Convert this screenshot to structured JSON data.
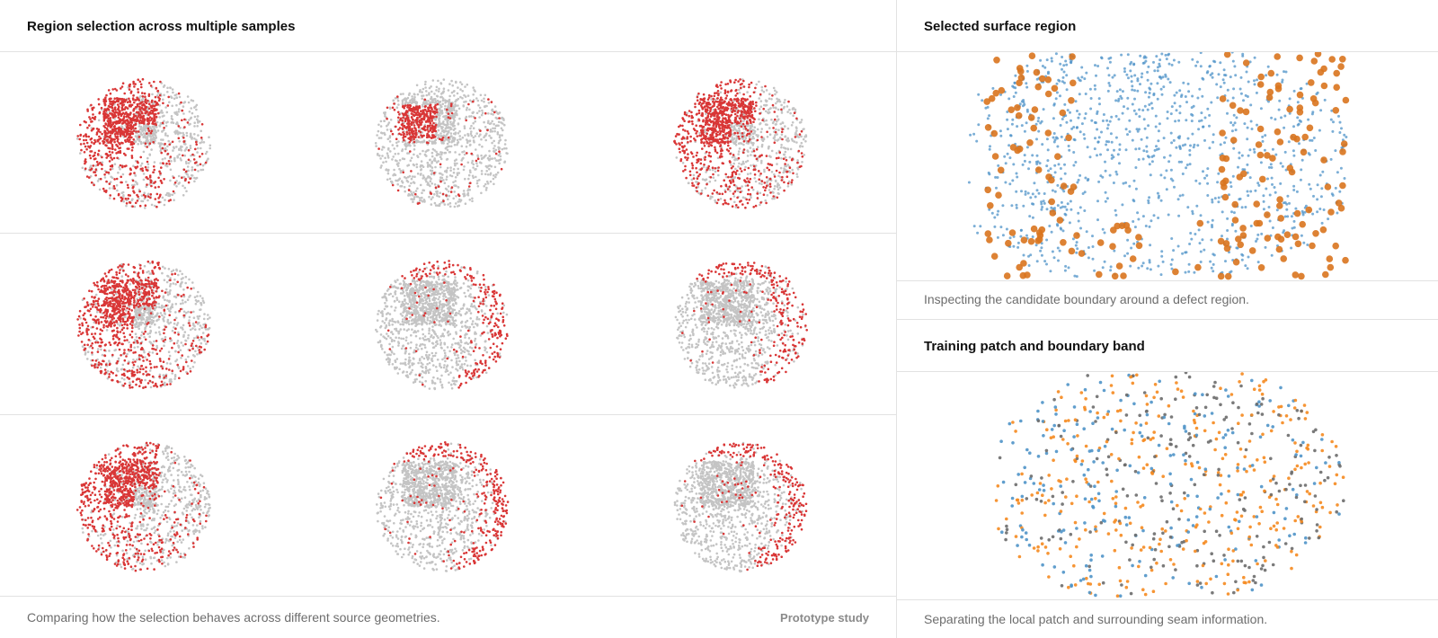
{
  "left_panel": {
    "title": "Region selection across multiple samples",
    "caption": "Comparing how the selection behaves across different source geometries.",
    "badge": "Prototype study",
    "point_colors": {
      "selected": "#d93636",
      "unselected": "#c4c4c4"
    },
    "samples": [
      {
        "row": 1,
        "col": 1,
        "selection": "left-core"
      },
      {
        "row": 1,
        "col": 2,
        "selection": "left-small"
      },
      {
        "row": 1,
        "col": 3,
        "selection": "left-core"
      },
      {
        "row": 2,
        "col": 1,
        "selection": "left-core"
      },
      {
        "row": 2,
        "col": 2,
        "selection": "right-rim"
      },
      {
        "row": 2,
        "col": 3,
        "selection": "right-rim"
      },
      {
        "row": 3,
        "col": 1,
        "selection": "left-core"
      },
      {
        "row": 3,
        "col": 2,
        "selection": "right-rim"
      },
      {
        "row": 3,
        "col": 3,
        "selection": "right-rim"
      }
    ]
  },
  "surface_panel": {
    "title": "Selected surface region",
    "caption": "Inspecting the candidate boundary around a defect region.",
    "point_colors": {
      "surface": "#4f93c8",
      "boundary": "#d9741e"
    }
  },
  "patch_panel": {
    "title": "Training patch and boundary band",
    "caption": "Separating the local patch and surrounding seam information.",
    "point_colors": {
      "patch": "#4f93c8",
      "band": "#f58a1f",
      "seam": "#6b6b6b"
    }
  }
}
